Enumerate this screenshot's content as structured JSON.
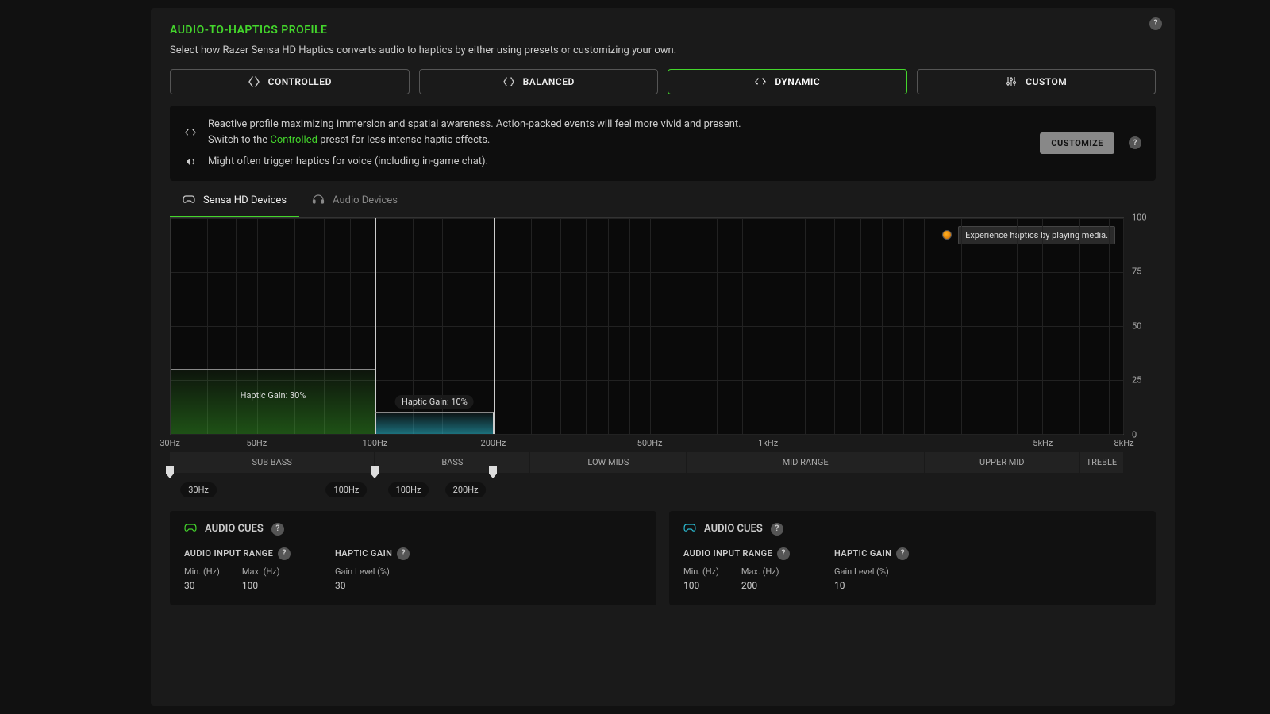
{
  "colors": {
    "accent": "#44d62c",
    "panel_bg": "#1a1a1a",
    "chart_bg": "#0a0a0a",
    "grid": "#222222",
    "band1_fill": "rgba(68,214,44,0.3)",
    "band2_fill": "rgba(40,180,200,0.5)"
  },
  "header": {
    "title": "AUDIO-TO-HAPTICS PROFILE",
    "subtitle": "Select how Razer Sensa HD Haptics converts audio to haptics by either using presets or customizing your own."
  },
  "presets": {
    "controlled": "CONTROLLED",
    "balanced": "BALANCED",
    "dynamic": "DYNAMIC",
    "custom": "CUSTOM",
    "active": "dynamic"
  },
  "description": {
    "line1_a": "Reactive profile maximizing immersion and spatial awareness. Action-packed events will feel more vivid and present.",
    "line1_b_prefix": "Switch to the ",
    "line1_b_link": "Controlled",
    "line1_b_suffix": " preset for less intense haptic effects.",
    "line2": "Might often trigger haptics for voice (including in-game chat).",
    "customize_btn": "CUSTOMIZE"
  },
  "tabs": {
    "sensa": "Sensa HD Devices",
    "audio": "Audio Devices",
    "active": "sensa"
  },
  "chart": {
    "y_ticks": [
      {
        "label": "100",
        "pct": 0
      },
      {
        "label": "75",
        "pct": 25
      },
      {
        "label": "50",
        "pct": 50
      },
      {
        "label": "25",
        "pct": 75
      },
      {
        "label": "0",
        "pct": 100
      }
    ],
    "x_ticks": [
      {
        "label": "30Hz",
        "pct": 0
      },
      {
        "label": "50Hz",
        "pct": 9.1
      },
      {
        "label": "100Hz",
        "pct": 21.5
      },
      {
        "label": "200Hz",
        "pct": 33.9
      },
      {
        "label": "500Hz",
        "pct": 50.3
      },
      {
        "label": "1kHz",
        "pct": 62.7
      },
      {
        "label": "5kHz",
        "pct": 91.5
      },
      {
        "label": "8kHz",
        "pct": 100
      }
    ],
    "grid_v_pct": [
      0,
      3.8,
      6.8,
      9.1,
      13.0,
      16.1,
      18.8,
      21.5,
      25.4,
      28.5,
      31.2,
      33.9,
      37.8,
      40.9,
      43.6,
      45.9,
      48.2,
      50.3,
      54.2,
      57.3,
      60.0,
      62.7,
      66.6,
      69.7,
      72.4,
      74.7,
      76.9,
      79.1,
      83.0,
      86.1,
      88.8,
      91.5,
      95.4,
      98.5,
      100
    ],
    "hint": "Experience haptics by playing media.",
    "bands": [
      {
        "label": "Haptic Gain: 30%",
        "from_pct": 0,
        "to_pct": 21.5,
        "height_pct": 30,
        "fill_class": "band-fill1",
        "label_mode": "inside"
      },
      {
        "label": "Haptic Gain: 10%",
        "from_pct": 21.5,
        "to_pct": 33.9,
        "height_pct": 10,
        "fill_class": "band-fill2",
        "label_mode": "above"
      }
    ],
    "range_lines_pct": [
      0,
      21.5,
      33.9
    ]
  },
  "freq_bands": [
    {
      "label": "SUB BASS",
      "from_pct": 0,
      "to_pct": 21.5
    },
    {
      "label": "BASS",
      "from_pct": 21.5,
      "to_pct": 37.8
    },
    {
      "label": "LOW MIDS",
      "from_pct": 37.8,
      "to_pct": 54.2
    },
    {
      "label": "MID RANGE",
      "from_pct": 54.2,
      "to_pct": 79.1
    },
    {
      "label": "UPPER MID",
      "from_pct": 79.1,
      "to_pct": 95.4
    },
    {
      "label": "TREBLE",
      "from_pct": 95.4,
      "to_pct": 100
    }
  ],
  "sliders": [
    {
      "handle_pct": 0,
      "pill_pct": 3,
      "label": "30Hz"
    },
    {
      "handle_pct": 21.5,
      "pill_pct": 18.5,
      "label": "100Hz"
    },
    {
      "handle_pct": 21.5,
      "pill_pct": 25.0,
      "label": "100Hz"
    },
    {
      "handle_pct": 33.9,
      "pill_pct": 31.0,
      "label": "200Hz"
    }
  ],
  "cues": {
    "heading": "AUDIO CUES",
    "input_range_label": "AUDIO INPUT RANGE",
    "haptic_gain_label": "HAPTIC GAIN",
    "min_label": "Min. (Hz)",
    "max_label": "Max. (Hz)",
    "gain_label": "Gain Level (%)",
    "cards": [
      {
        "icon": "green",
        "min": "30",
        "max": "100",
        "gain": "30"
      },
      {
        "icon": "cyan",
        "min": "100",
        "max": "200",
        "gain": "10"
      }
    ]
  }
}
